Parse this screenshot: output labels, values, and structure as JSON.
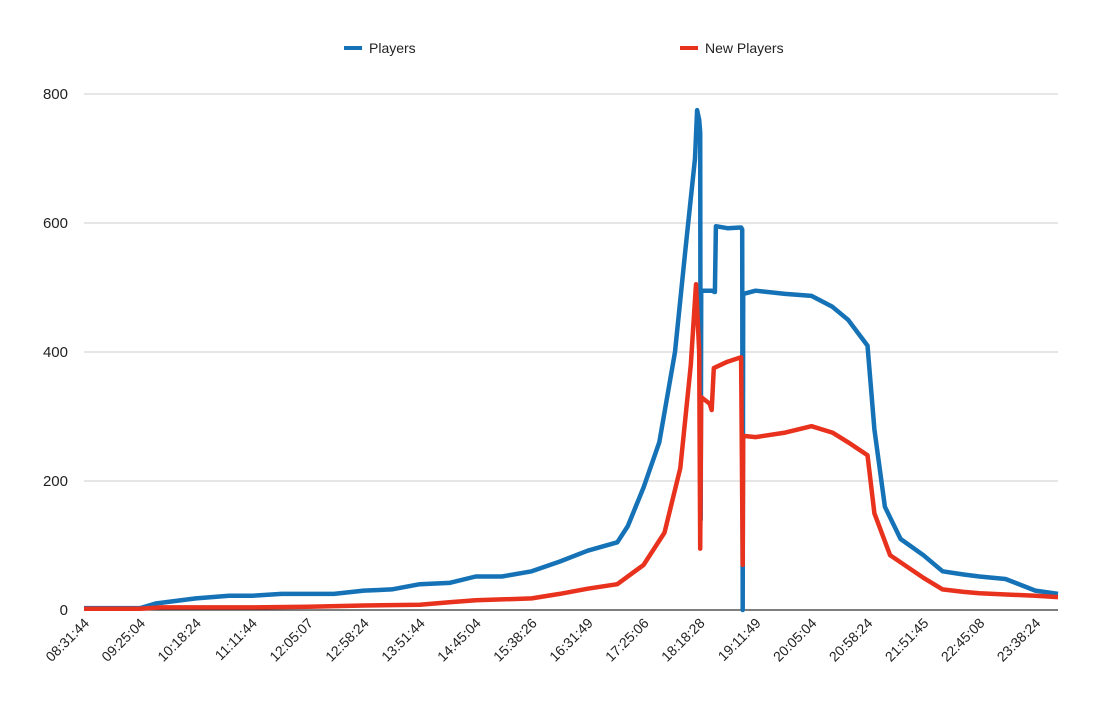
{
  "chart_data": {
    "type": "line",
    "title": "",
    "xlabel": "",
    "ylabel": "",
    "ylim": [
      0,
      800
    ],
    "yticks": [
      0,
      200,
      400,
      600,
      800
    ],
    "grid": true,
    "legend_position": "top-center",
    "x_tick_labels": [
      "08:31:44",
      "09:25:04",
      "10:18:24",
      "11:11:44",
      "12:05:07",
      "12:58:24",
      "13:51:44",
      "14:45:04",
      "15:38:26",
      "16:31:49",
      "17:25:06",
      "18:18:28",
      "19:11:49",
      "20:05:04",
      "20:58:24",
      "21:51:45",
      "22:45:08",
      "23:38:24"
    ],
    "series": [
      {
        "name": "Players",
        "color": "#1572b6",
        "points": [
          [
            "08:31:44",
            3
          ],
          [
            "09:25:04",
            3
          ],
          [
            "09:40:00",
            10
          ],
          [
            "10:18:24",
            18
          ],
          [
            "10:50:00",
            22
          ],
          [
            "11:11:44",
            22
          ],
          [
            "11:40:00",
            25
          ],
          [
            "12:05:07",
            25
          ],
          [
            "12:30:00",
            25
          ],
          [
            "12:58:24",
            30
          ],
          [
            "13:25:00",
            32
          ],
          [
            "13:51:44",
            40
          ],
          [
            "14:20:00",
            42
          ],
          [
            "14:45:04",
            52
          ],
          [
            "15:10:00",
            52
          ],
          [
            "15:38:26",
            60
          ],
          [
            "16:05:00",
            75
          ],
          [
            "16:31:49",
            92
          ],
          [
            "17:00:00",
            105
          ],
          [
            "17:10:00",
            130
          ],
          [
            "17:25:06",
            190
          ],
          [
            "17:40:00",
            260
          ],
          [
            "17:55:00",
            400
          ],
          [
            "18:05:00",
            560
          ],
          [
            "18:14:00",
            700
          ],
          [
            "18:16:00",
            775
          ],
          [
            "18:18:00",
            760
          ],
          [
            "18:19:00",
            740
          ],
          [
            "18:19:30",
            140
          ],
          [
            "18:20:00",
            495
          ],
          [
            "18:30:00",
            495
          ],
          [
            "18:33:00",
            493
          ],
          [
            "18:34:00",
            595
          ],
          [
            "18:45:00",
            592
          ],
          [
            "18:58:00",
            593
          ],
          [
            "18:59:00",
            590
          ],
          [
            "18:59:30",
            0
          ],
          [
            "19:00:00",
            490
          ],
          [
            "19:11:49",
            495
          ],
          [
            "19:40:00",
            490
          ],
          [
            "20:05:04",
            487
          ],
          [
            "20:25:00",
            470
          ],
          [
            "20:40:00",
            450
          ],
          [
            "20:58:24",
            410
          ],
          [
            "21:05:00",
            280
          ],
          [
            "21:15:00",
            160
          ],
          [
            "21:30:00",
            110
          ],
          [
            "21:51:45",
            85
          ],
          [
            "22:10:00",
            60
          ],
          [
            "22:30:00",
            55
          ],
          [
            "22:45:08",
            52
          ],
          [
            "23:10:00",
            48
          ],
          [
            "23:38:24",
            30
          ],
          [
            "24:00:00",
            25
          ]
        ]
      },
      {
        "name": "New Players",
        "color": "#e8321e",
        "points": [
          [
            "08:31:44",
            2
          ],
          [
            "09:25:04",
            2
          ],
          [
            "09:45:00",
            4
          ],
          [
            "10:18:24",
            4
          ],
          [
            "11:11:44",
            4
          ],
          [
            "12:05:07",
            5
          ],
          [
            "12:58:24",
            7
          ],
          [
            "13:51:44",
            8
          ],
          [
            "14:20:00",
            12
          ],
          [
            "14:45:04",
            15
          ],
          [
            "15:38:26",
            18
          ],
          [
            "16:05:00",
            25
          ],
          [
            "16:31:49",
            33
          ],
          [
            "17:00:00",
            40
          ],
          [
            "17:25:06",
            70
          ],
          [
            "17:45:00",
            120
          ],
          [
            "18:00:00",
            220
          ],
          [
            "18:10:00",
            380
          ],
          [
            "18:15:00",
            505
          ],
          [
            "18:18:00",
            400
          ],
          [
            "18:19:00",
            95
          ],
          [
            "18:20:00",
            330
          ],
          [
            "18:28:00",
            320
          ],
          [
            "18:30:00",
            310
          ],
          [
            "18:32:00",
            375
          ],
          [
            "18:45:00",
            385
          ],
          [
            "18:58:00",
            392
          ],
          [
            "18:59:30",
            70
          ],
          [
            "19:00:00",
            270
          ],
          [
            "19:11:49",
            268
          ],
          [
            "19:40:00",
            275
          ],
          [
            "20:05:04",
            285
          ],
          [
            "20:25:00",
            275
          ],
          [
            "20:40:00",
            260
          ],
          [
            "20:58:24",
            240
          ],
          [
            "21:05:00",
            150
          ],
          [
            "21:20:00",
            85
          ],
          [
            "21:51:45",
            50
          ],
          [
            "22:10:00",
            32
          ],
          [
            "22:30:00",
            28
          ],
          [
            "22:45:08",
            26
          ],
          [
            "23:38:24",
            22
          ],
          [
            "24:00:00",
            20
          ]
        ]
      }
    ]
  }
}
